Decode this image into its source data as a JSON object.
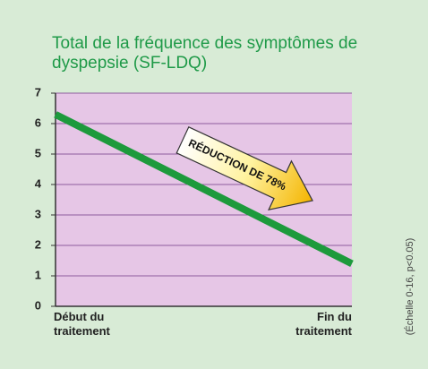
{
  "chart_data": {
    "type": "line",
    "title": "Total de la fréquence des symptômes de dyspepsie (SF-LDQ)",
    "categories": [
      "Début du traitement",
      "Fin du traitement"
    ],
    "values": [
      6.3,
      1.4
    ],
    "color": "#1d9a3c",
    "ylim": [
      0,
      7
    ],
    "yticks": [
      0,
      1,
      2,
      3,
      4,
      5,
      6,
      7
    ],
    "grid": true,
    "annotation": "RÉDUCTION DE 78%",
    "note": "(Échelle 0-16, p<0.05)"
  }
}
